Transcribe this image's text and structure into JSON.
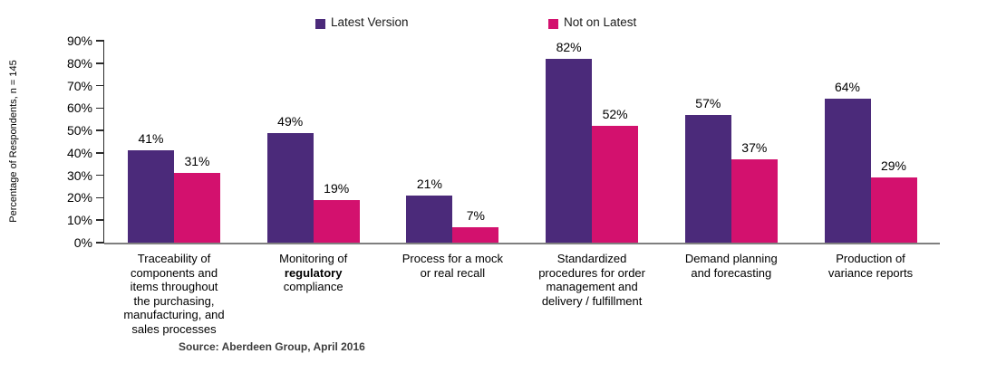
{
  "chart_data": {
    "type": "bar",
    "title": "",
    "ylabel": "Percentage of Respondents, n = 145",
    "xlabel": "",
    "ylim": [
      0,
      90
    ],
    "ytick_step": 10,
    "ytick_labels": [
      "0%",
      "10%",
      "20%",
      "30%",
      "40%",
      "50%",
      "60%",
      "70%",
      "80%",
      "90%"
    ],
    "value_suffix": "%",
    "grid": false,
    "legend_position": "top",
    "categories": [
      "Traceability of components and items throughout the purchasing, manufacturing, and sales processes",
      "Monitoring of regulatory compliance",
      "Process for a mock or real recall",
      "Standardized procedures for order management and delivery / fulfillment",
      "Demand planning and forecasting",
      "Production of variance reports"
    ],
    "category_lines": [
      {
        "lines": [
          "Traceability of",
          "components and",
          "items throughout",
          "the purchasing,",
          "manufacturing, and",
          "sales processes"
        ],
        "bold": []
      },
      {
        "lines": [
          "Monitoring of",
          "regulatory",
          "compliance"
        ],
        "bold": [
          1
        ]
      },
      {
        "lines": [
          "Process for a mock",
          "or real recall"
        ],
        "bold": []
      },
      {
        "lines": [
          "Standardized",
          "procedures for order",
          "management and",
          "delivery / fulfillment"
        ],
        "bold": []
      },
      {
        "lines": [
          "Demand planning",
          "and forecasting"
        ],
        "bold": []
      },
      {
        "lines": [
          "Production of",
          "variance reports"
        ],
        "bold": []
      }
    ],
    "series": [
      {
        "name": "Latest Version",
        "color": "#4B2A7A",
        "values": [
          41,
          49,
          21,
          82,
          57,
          64
        ]
      },
      {
        "name": "Not on Latest",
        "color": "#D3116E",
        "values": [
          31,
          19,
          7,
          52,
          37,
          29
        ]
      }
    ],
    "colors": {
      "axis_y": "#2b2b2b",
      "axis_x": "#7f7f7f",
      "text": "#000000"
    }
  },
  "footer": {
    "source": "Source: Aberdeen Group, April 2016"
  }
}
